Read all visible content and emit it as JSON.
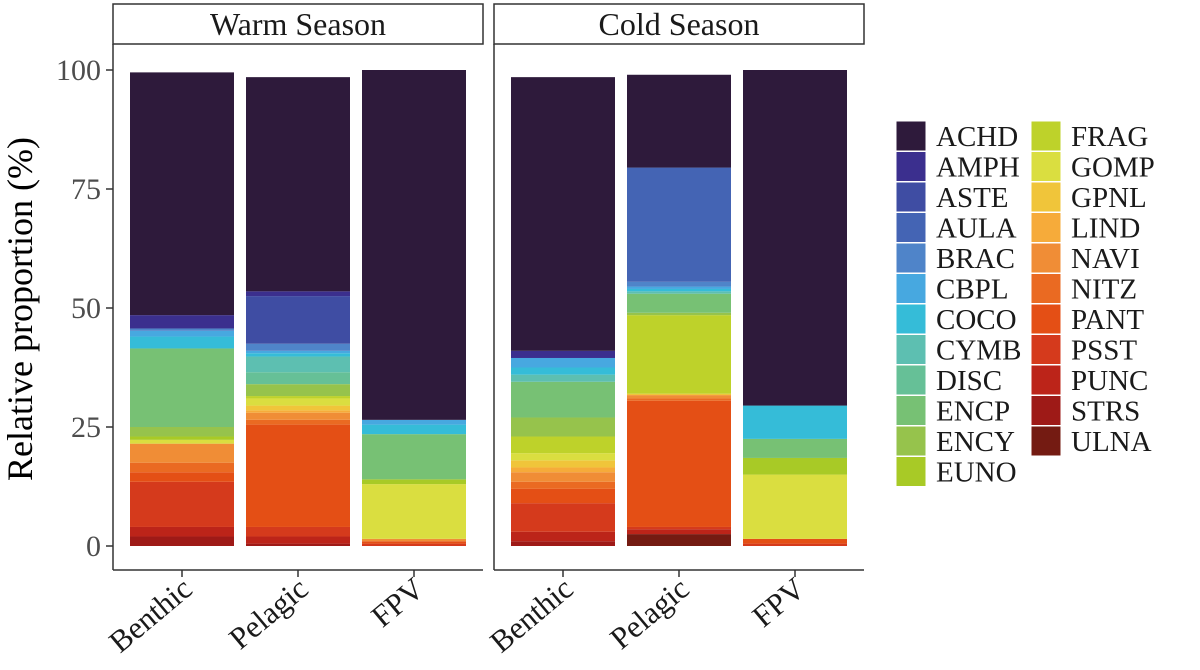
{
  "chart_data": {
    "type": "stacked-bar",
    "ylabel": "Relative proportion (%)",
    "ylim": [
      0,
      100
    ],
    "yticks": [
      0,
      25,
      50,
      75,
      100
    ],
    "categories": [
      "Benthic",
      "Pelagic",
      "FPV"
    ],
    "legend_position": "right",
    "stack_order": "legend order from top to bottom (ACHD on top, ULNA at bottom)",
    "taxa": [
      {
        "code": "ACHD",
        "color": "#2e1a3b"
      },
      {
        "code": "AMPH",
        "color": "#3b2f8e"
      },
      {
        "code": "ASTE",
        "color": "#3f4da3"
      },
      {
        "code": "AULA",
        "color": "#4464b4"
      },
      {
        "code": "BRAC",
        "color": "#4f84c9"
      },
      {
        "code": "CBPL",
        "color": "#47a8e0"
      },
      {
        "code": "COCO",
        "color": "#35bcd8"
      },
      {
        "code": "CYMB",
        "color": "#5dbfb1"
      },
      {
        "code": "DISC",
        "color": "#66c097"
      },
      {
        "code": "ENCP",
        "color": "#77c174"
      },
      {
        "code": "ENCY",
        "color": "#96c34c"
      },
      {
        "code": "EUNO",
        "color": "#a8ca26"
      },
      {
        "code": "FRAG",
        "color": "#bed22a"
      },
      {
        "code": "GOMP",
        "color": "#dade40"
      },
      {
        "code": "GPNL",
        "color": "#f0c53a"
      },
      {
        "code": "LIND",
        "color": "#f6ab3a"
      },
      {
        "code": "NAVI",
        "color": "#f08d36"
      },
      {
        "code": "NITZ",
        "color": "#ea6a22"
      },
      {
        "code": "PANT",
        "color": "#e44f15"
      },
      {
        "code": "PSST",
        "color": "#d53a1c"
      },
      {
        "code": "PUNC",
        "color": "#bc2419"
      },
      {
        "code": "STRS",
        "color": "#9e1a17"
      },
      {
        "code": "ULNA",
        "color": "#741b12"
      }
    ],
    "panels": [
      {
        "title": "Warm Season",
        "bars": [
          {
            "category": "Benthic",
            "values": {
              "ACHD": 51,
              "AMPH": 2.8,
              "ASTE": 0,
              "AULA": 0,
              "BRAC": 0.5,
              "CBPL": 1.2,
              "COCO": 2.5,
              "CYMB": 0,
              "DISC": 0,
              "ENCP": 16.5,
              "ENCY": 2,
              "EUNO": 0.7,
              "FRAG": 0,
              "GOMP": 0.8,
              "GPNL": 0,
              "LIND": 0,
              "NAVI": 4,
              "NITZ": 2,
              "PANT": 2,
              "PSST": 9.5,
              "PUNC": 2,
              "STRS": 2,
              "ULNA": 0
            }
          },
          {
            "category": "Pelagic",
            "values": {
              "ACHD": 45,
              "AMPH": 1,
              "ASTE": 10,
              "AULA": 0,
              "BRAC": 1.5,
              "CBPL": 0.5,
              "COCO": 0.7,
              "CYMB": 3.3,
              "DISC": 2.5,
              "ENCP": 0,
              "ENCY": 2.5,
              "EUNO": 0,
              "FRAG": 0.5,
              "GOMP": 1.5,
              "GPNL": 1,
              "LIND": 0.5,
              "NAVI": 1.5,
              "NITZ": 1,
              "PANT": 21.5,
              "PSST": 2,
              "PUNC": 1.5,
              "STRS": 0.5,
              "ULNA": 0
            }
          },
          {
            "category": "FPV",
            "values": {
              "ACHD": 73.5,
              "AMPH": 0,
              "ASTE": 0,
              "AULA": 0,
              "BRAC": 0,
              "CBPL": 1,
              "COCO": 2,
              "CYMB": 0,
              "DISC": 0,
              "ENCP": 9.5,
              "ENCY": 0,
              "EUNO": 1,
              "FRAG": 0,
              "GOMP": 11.5,
              "GPNL": 0,
              "LIND": 0,
              "NAVI": 0.5,
              "NITZ": 0,
              "PANT": 0.5,
              "PSST": 0.5,
              "PUNC": 0,
              "STRS": 0,
              "ULNA": 0
            }
          }
        ]
      },
      {
        "title": "Cold Season",
        "bars": [
          {
            "category": "Benthic",
            "values": {
              "ACHD": 57.5,
              "AMPH": 1.5,
              "ASTE": 0,
              "AULA": 0,
              "BRAC": 0,
              "CBPL": 2,
              "COCO": 1.5,
              "CYMB": 1.5,
              "DISC": 0,
              "ENCP": 7.5,
              "ENCY": 4,
              "EUNO": 0,
              "FRAG": 3.5,
              "GOMP": 1.5,
              "GPNL": 1.5,
              "LIND": 1,
              "NAVI": 2,
              "NITZ": 1.5,
              "PANT": 3,
              "PSST": 6,
              "PUNC": 2,
              "STRS": 1,
              "ULNA": 0
            }
          },
          {
            "category": "Pelagic",
            "values": {
              "ACHD": 19.5,
              "AMPH": 0,
              "ASTE": 0,
              "AULA": 24,
              "BRAC": 1,
              "CBPL": 0.5,
              "COCO": 0.5,
              "CYMB": 0.5,
              "DISC": 0,
              "ENCP": 4,
              "ENCY": 0.5,
              "EUNO": 0,
              "FRAG": 16.5,
              "GOMP": 0,
              "GPNL": 0.3,
              "LIND": 0,
              "NAVI": 0.7,
              "NITZ": 0.5,
              "PANT": 26.5,
              "PSST": 0.5,
              "PUNC": 1,
              "STRS": 0,
              "ULNA": 2.5
            }
          },
          {
            "category": "FPV",
            "values": {
              "ACHD": 70.5,
              "AMPH": 0,
              "ASTE": 0,
              "AULA": 0,
              "BRAC": 0,
              "CBPL": 0,
              "COCO": 7,
              "CYMB": 0,
              "DISC": 0,
              "ENCP": 4,
              "ENCY": 0,
              "EUNO": 3.5,
              "FRAG": 0,
              "GOMP": 13.5,
              "GPNL": 0,
              "LIND": 0,
              "NAVI": 0,
              "NITZ": 0,
              "PANT": 1,
              "PSST": 0.5,
              "PUNC": 0,
              "STRS": 0,
              "ULNA": 0
            }
          }
        ]
      }
    ]
  }
}
